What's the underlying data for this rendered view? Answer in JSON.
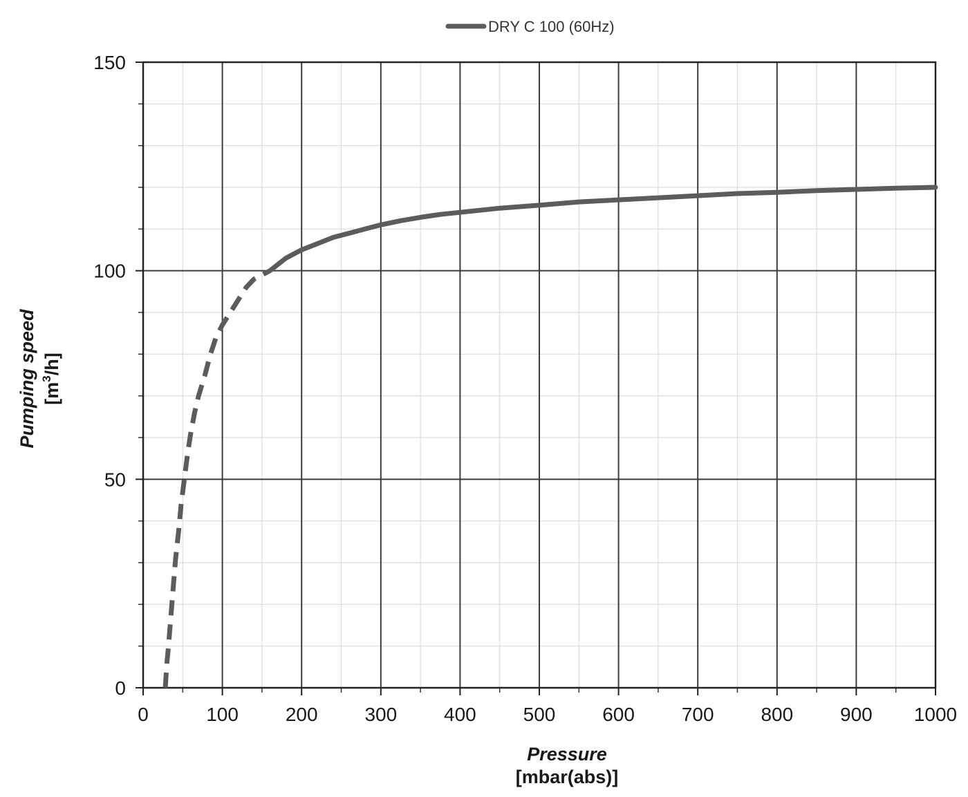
{
  "chart_data": {
    "type": "line",
    "title": "",
    "xlabel": "Pressure",
    "xunit": "[mbar(abs)]",
    "ylabel": "Pumping speed",
    "yunit_prefix": "[m",
    "yunit_sup": "3",
    "yunit_suffix": "/h]",
    "xlim": [
      0,
      1000
    ],
    "ylim": [
      0,
      150
    ],
    "x_major_ticks": [
      0,
      100,
      200,
      300,
      400,
      500,
      600,
      700,
      800,
      900,
      1000
    ],
    "y_major_ticks": [
      0,
      50,
      100,
      150
    ],
    "x_minor_step": 50,
    "y_minor_step": 10,
    "grid": true,
    "legend_position": "top-center",
    "line_color": "#5c5c5c",
    "series": [
      {
        "name": "DRY C 100 (60Hz)",
        "x": [
          28,
          29,
          30,
          32,
          35,
          38,
          41,
          45,
          48,
          52,
          56,
          60,
          65,
          70,
          78,
          85,
          92,
          100,
          110,
          120,
          130,
          140,
          150,
          160,
          170,
          180,
          190,
          200,
          220,
          240,
          260,
          280,
          300,
          325,
          350,
          375,
          400,
          450,
          500,
          550,
          600,
          650,
          700,
          750,
          800,
          850,
          900,
          950,
          1000
        ],
        "y": [
          0,
          3,
          6,
          10,
          17,
          24,
          31,
          38,
          44,
          50,
          56,
          61,
          66,
          70,
          75,
          80,
          84,
          87,
          90,
          93,
          96,
          98,
          99,
          100,
          101.5,
          103,
          104,
          105,
          106.5,
          108,
          109,
          110,
          111,
          112,
          112.8,
          113.5,
          114,
          115,
          115.7,
          116.5,
          117,
          117.5,
          118,
          118.5,
          118.8,
          119.2,
          119.5,
          119.8,
          120
        ],
        "dashed_until_x": 160
      }
    ]
  }
}
